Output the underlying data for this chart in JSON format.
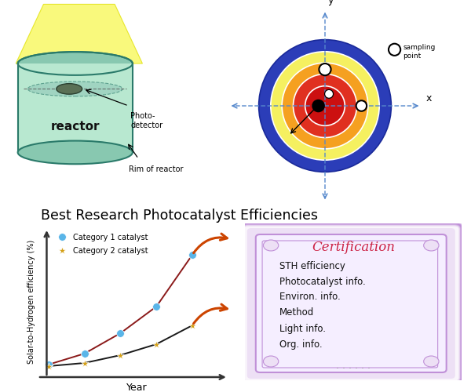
{
  "background_color": "#ffffff",
  "top_title": "Best Research Photocatalyst Efficiencies",
  "reactor_label": "reactor",
  "photo_detector_label": "Photo-\ndetector",
  "rim_label": "Rim of reactor",
  "sampling_label": "sampling\npoint",
  "axis_x_label": "x",
  "axis_y_label": "y",
  "ring_radii": [
    1.0,
    0.82,
    0.65,
    0.48,
    0.3
  ],
  "ring_colors": [
    "#2b3db8",
    "#f5f060",
    "#f5a020",
    "#e03020",
    "#cc1010"
  ],
  "cat1_x": [
    0,
    1,
    2,
    3,
    4
  ],
  "cat1_y": [
    0.5,
    1.2,
    2.5,
    4.2,
    7.5
  ],
  "cat2_x": [
    0,
    1,
    2,
    3,
    4
  ],
  "cat2_y": [
    0.4,
    0.6,
    1.1,
    1.8,
    3.0
  ],
  "cat1_color": "#5ab5e8",
  "cat2_color": "#d4a017",
  "line1_color": "#8b1a1a",
  "line2_color": "#1a1a1a",
  "cert_title": "Certification",
  "cert_items": [
    "STH efficiency",
    "Photocatalyst info.",
    "Environ. info.",
    "Method",
    "Light info.",
    "Org. info."
  ],
  "cert_bg": "#ede0f5",
  "cert_bg2": "#f5eeff",
  "cert_border_outer": "#c090d8",
  "cert_border_inner": "#c090d8",
  "arrow_color": "#cc4400",
  "ylabel": "Solar-to-Hydrogen efficiency (%)",
  "xlabel": "Year",
  "legend_cat1": "Category 1 catalyst",
  "legend_cat2": "Category 2 catalyst",
  "reactor_body_color": "#b8e8d0",
  "reactor_edge_color": "#2a7a6a",
  "reactor_dark_color": "#88c8b0",
  "light_color": "#f8f850",
  "light_edge_color": "#e0e000"
}
